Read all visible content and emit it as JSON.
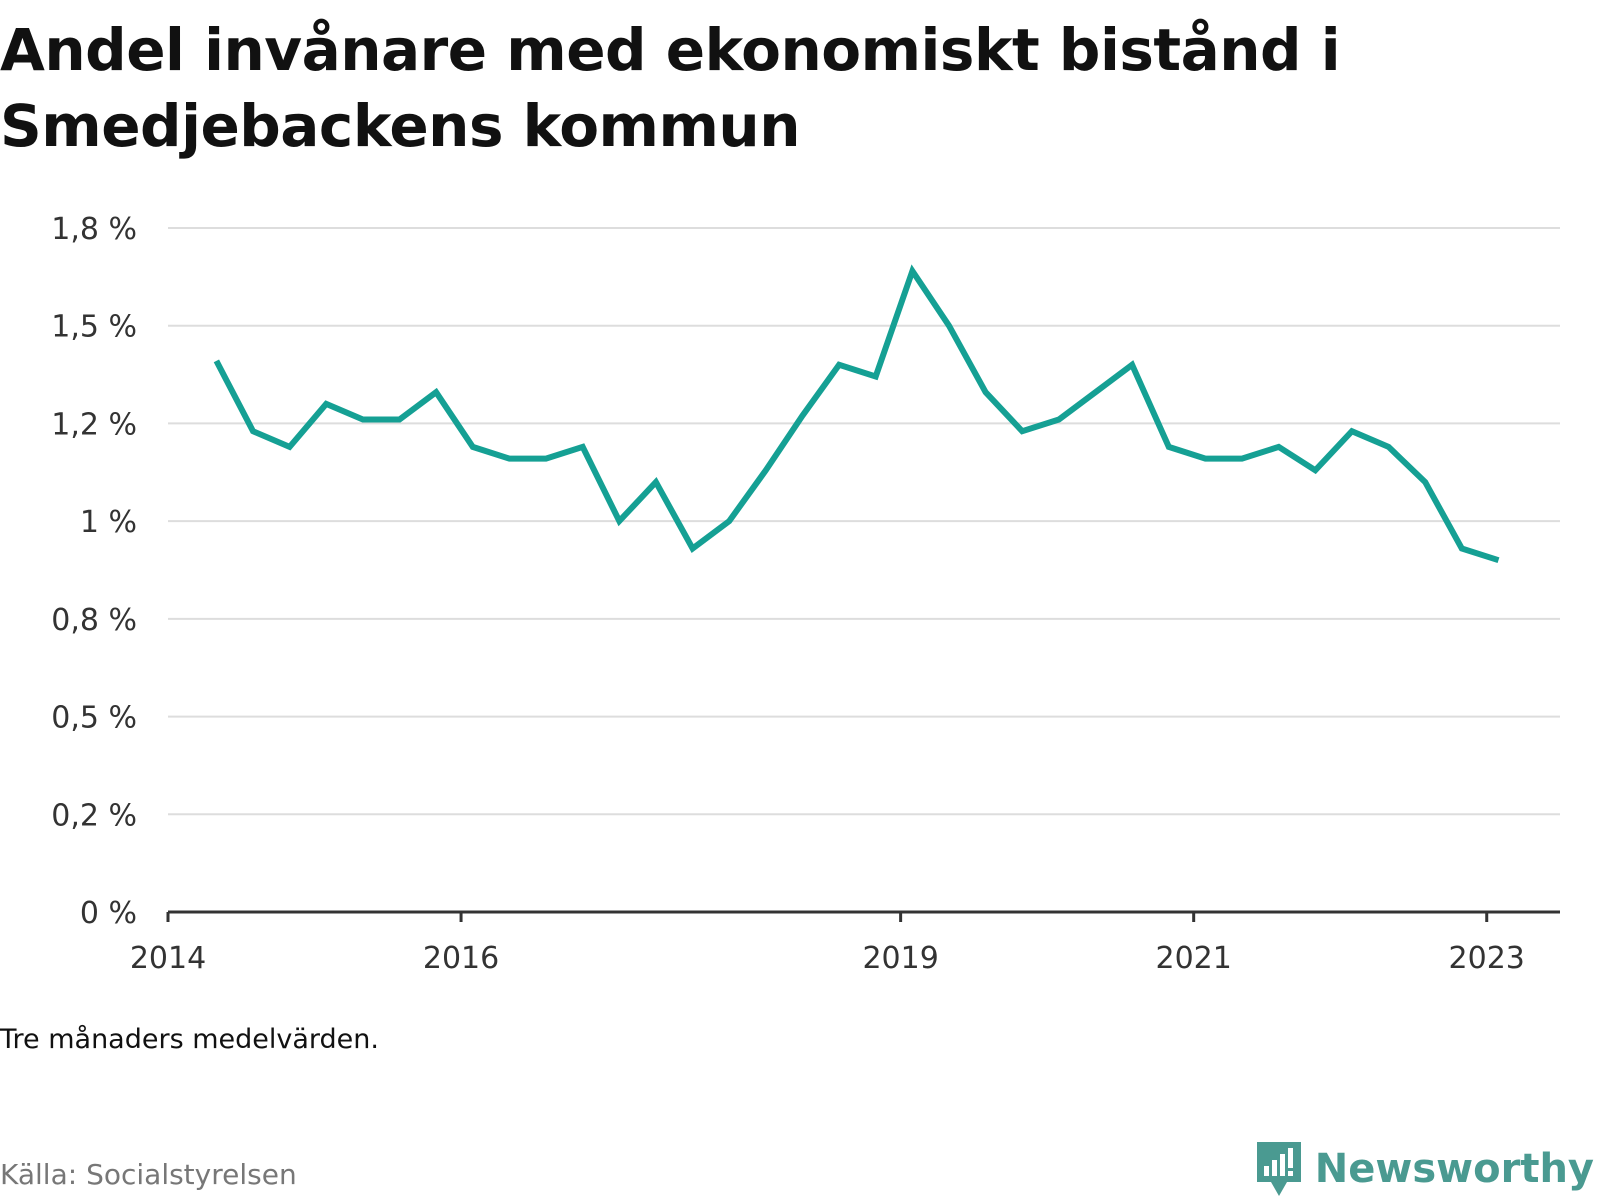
{
  "title": "Andel invånare med ekonomiskt bistånd i Smedjebackens kommun",
  "note": "Tre månaders medelvärden.",
  "source": "Källa: Socialstyrelsen",
  "brand": {
    "name": "Newsworthy",
    "icon": "bar-chart-speech-bubble-icon",
    "color": "#4a9a91"
  },
  "chart_data": {
    "type": "line",
    "xlabel": "",
    "ylabel": "",
    "grid": true,
    "ylim": [
      0,
      1.75
    ],
    "y_ticks": [
      0,
      0.25,
      0.5,
      0.75,
      1.0,
      1.25,
      1.5,
      1.75
    ],
    "y_tick_labels": [
      "0 %",
      "0,2 %",
      "0,5 %",
      "0,8 %",
      "1 %",
      "1,2 %",
      "1,5 %",
      "1,8 %"
    ],
    "xlim": [
      2014.0,
      2023.5
    ],
    "x_ticks": [
      2014,
      2016,
      2019,
      2021,
      2023
    ],
    "x_tick_labels": [
      "2014",
      "2016",
      "2019",
      "2021",
      "2023"
    ],
    "series": [
      {
        "color": "#15a094",
        "x": [
          2014.33,
          2014.58,
          2014.83,
          2015.08,
          2015.33,
          2015.58,
          2015.83,
          2016.08,
          2016.33,
          2016.58,
          2016.83,
          2017.08,
          2017.33,
          2017.58,
          2017.83,
          2018.08,
          2018.33,
          2018.58,
          2018.83,
          2019.08,
          2019.33,
          2019.58,
          2019.83,
          2020.08,
          2020.33,
          2020.58,
          2020.83,
          2021.08,
          2021.33,
          2021.58,
          2021.83,
          2022.08,
          2022.33,
          2022.58,
          2022.83,
          2023.08
        ],
        "values": [
          1.41,
          1.23,
          1.19,
          1.3,
          1.26,
          1.26,
          1.33,
          1.19,
          1.16,
          1.16,
          1.19,
          1.0,
          1.1,
          0.93,
          1.0,
          1.13,
          1.27,
          1.4,
          1.37,
          1.64,
          1.5,
          1.33,
          1.23,
          1.26,
          1.33,
          1.4,
          1.19,
          1.16,
          1.16,
          1.19,
          1.13,
          1.23,
          1.19,
          1.1,
          0.93,
          0.9
        ]
      }
    ]
  }
}
